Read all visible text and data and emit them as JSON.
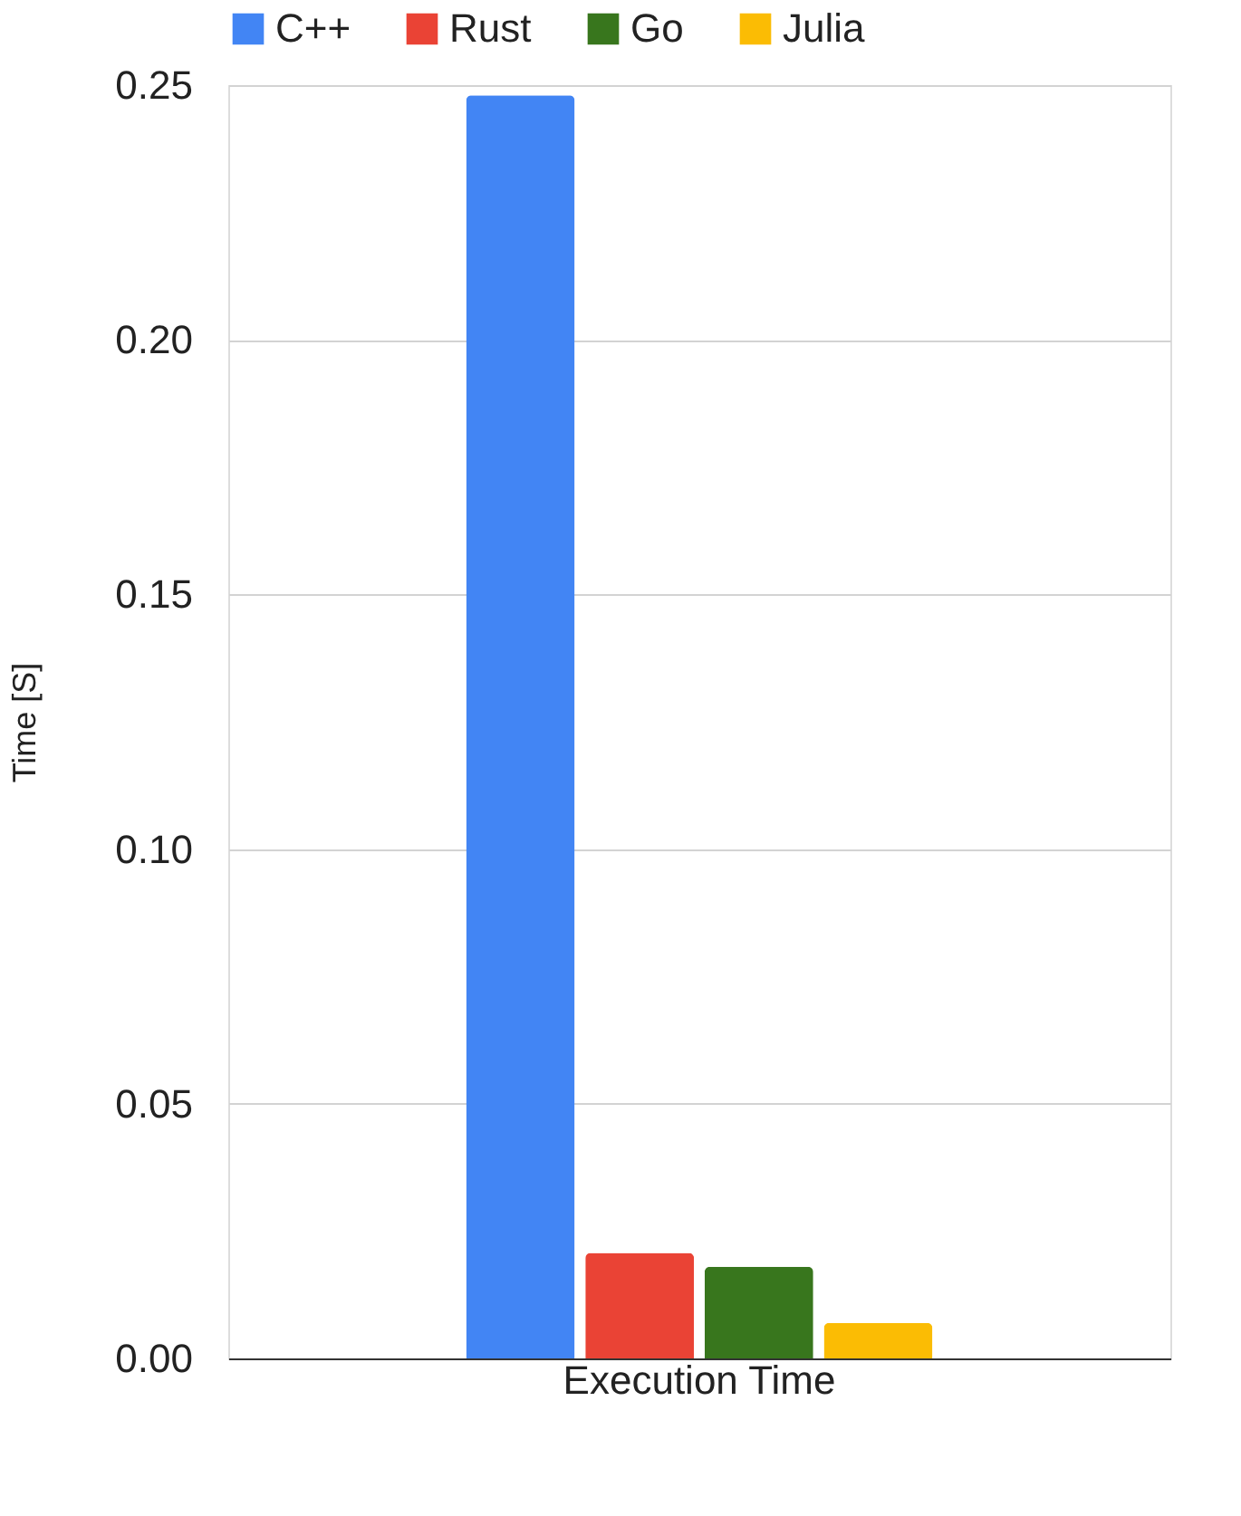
{
  "chart_data": {
    "type": "bar",
    "categories": [
      "Execution Time"
    ],
    "ylabel": "Time [S]",
    "ylim": [
      0,
      0.25
    ],
    "yticks": [
      {
        "value": 0,
        "label": "0.00"
      },
      {
        "value": 0.05,
        "label": "0.05"
      },
      {
        "value": 0.1,
        "label": "0.10"
      },
      {
        "value": 0.15,
        "label": "0.15"
      },
      {
        "value": 0.2,
        "label": "0.20"
      },
      {
        "value": 0.25,
        "label": "0.25"
      }
    ],
    "grid": "y",
    "legend": "top",
    "series": [
      {
        "name": "C++",
        "color": "#4285f4",
        "values": [
          0.248
        ]
      },
      {
        "name": "Rust",
        "color": "#ea4335",
        "values": [
          0.0207
        ]
      },
      {
        "name": "Go",
        "color": "#38761d",
        "values": [
          0.018
        ]
      },
      {
        "name": "Julia",
        "color": "#fbbc04",
        "values": [
          0.007
        ]
      }
    ]
  }
}
